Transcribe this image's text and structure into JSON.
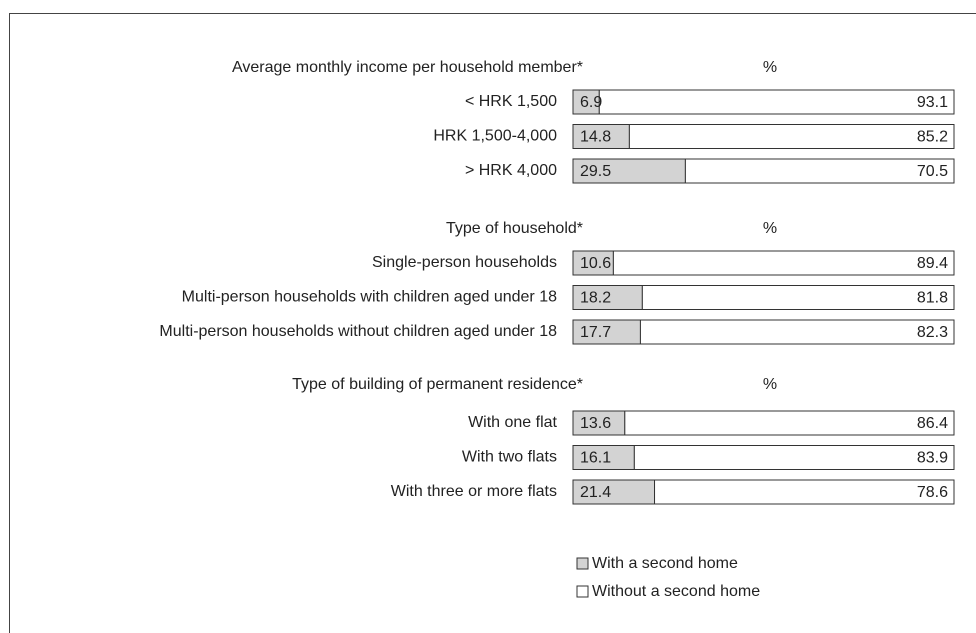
{
  "chart_data": {
    "type": "bar",
    "orientation": "horizontal",
    "stacked": true,
    "xlim": [
      0,
      100
    ],
    "series": [
      {
        "name": "With a second home",
        "color": "#d3d3d3"
      },
      {
        "name": "Without a second home",
        "color": "#ffffff"
      }
    ],
    "groups": [
      {
        "title": "Average monthly income per household member*",
        "unit": "%",
        "categories": [
          "< HRK 1,500",
          "HRK 1,500-4,000",
          "> HRK 4,000"
        ],
        "values": [
          [
            6.9,
            14.8,
            29.5
          ],
          [
            93.1,
            85.2,
            70.5
          ]
        ]
      },
      {
        "title": "Type of household*",
        "unit": "%",
        "categories": [
          "Single-person households",
          "Multi-person households with children aged under 18",
          "Multi-person households without children aged under 18"
        ],
        "values": [
          [
            10.6,
            18.2,
            17.7
          ],
          [
            89.4,
            81.8,
            82.3
          ]
        ]
      },
      {
        "title": "Type of building of permanent residence*",
        "unit": "%",
        "categories": [
          "With one flat",
          "With two flats",
          "With three or more flats"
        ],
        "values": [
          [
            13.6,
            16.1,
            21.4
          ],
          [
            86.4,
            83.9,
            78.6
          ]
        ]
      }
    ]
  }
}
